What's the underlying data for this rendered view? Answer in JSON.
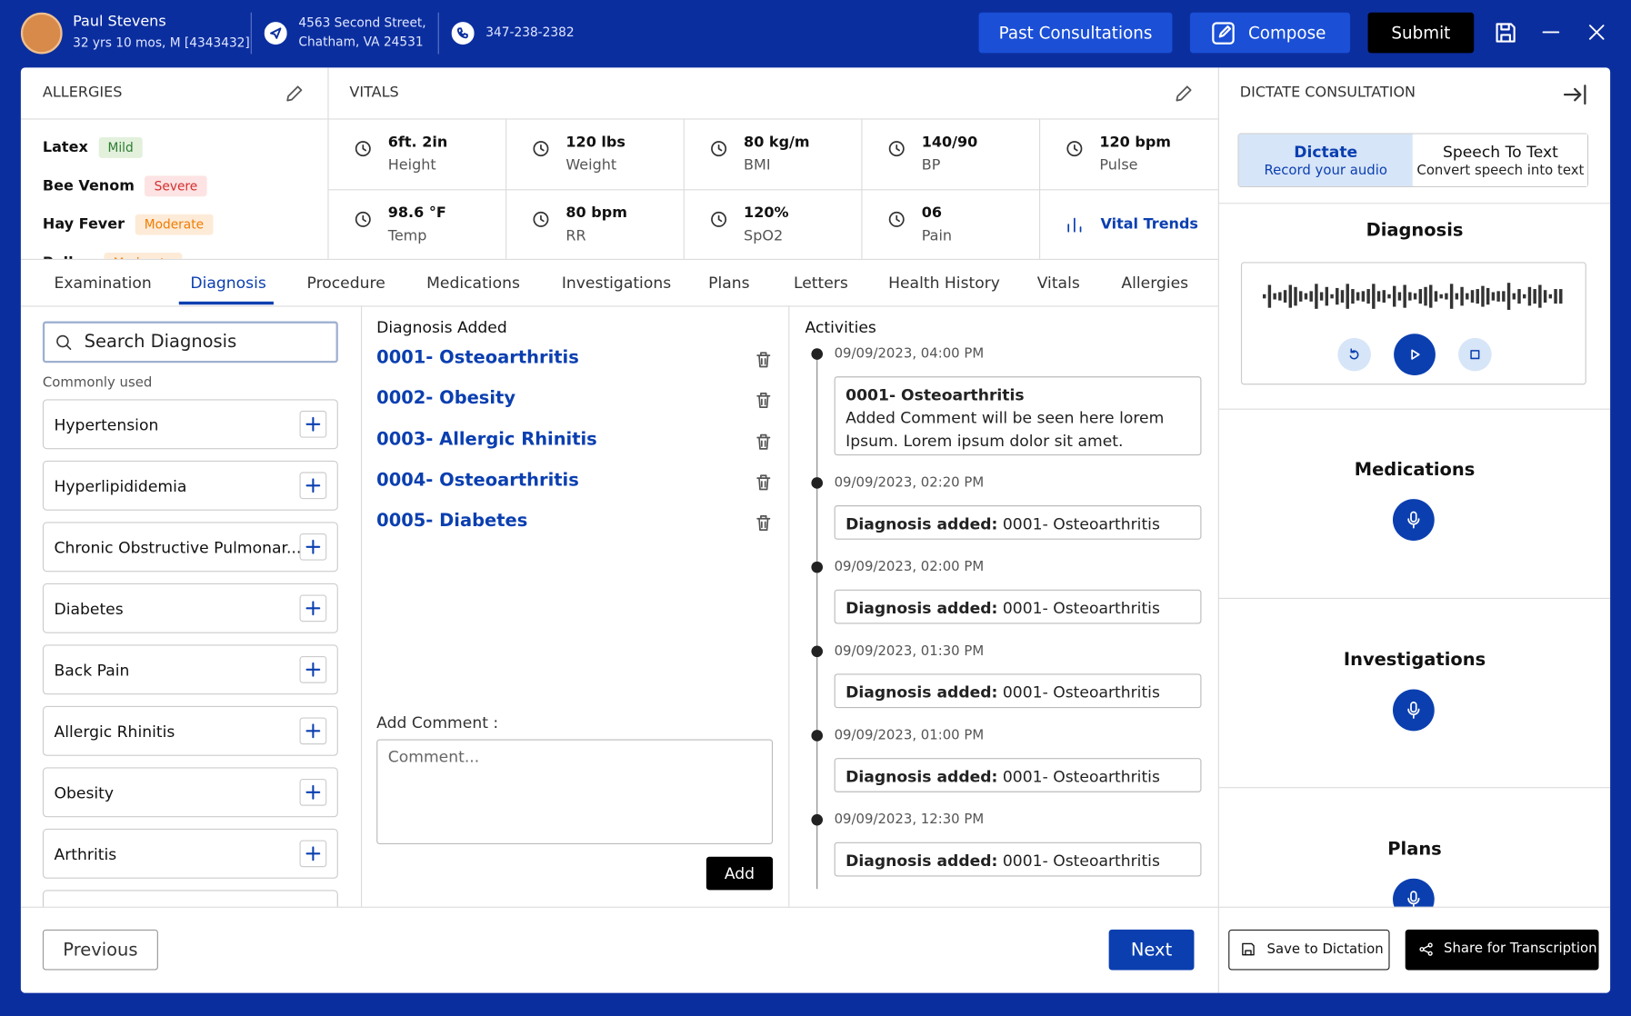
{
  "header": {
    "name": "Paul Stevens",
    "details": "32 yrs 10 mos, M [4343432]",
    "address_line1": "4563 Second Street,",
    "address_line2": "Chatham, VA 24531",
    "phone": "347-238-2382",
    "buttons": [
      "Past Consultations",
      "Compose",
      "Submit"
    ]
  },
  "allergies": {
    "title": "ALLERGIES",
    "items": [
      {
        "name": "Latex",
        "severity": "Mild"
      },
      {
        "name": "Bee Venom",
        "severity": "Severe"
      },
      {
        "name": "Hay Fever",
        "severity": "Moderate"
      },
      {
        "name": "Pollen",
        "severity": "Moderate"
      }
    ]
  },
  "vitals": {
    "title": "VITALS",
    "items": [
      {
        "value": "6ft. 2in",
        "label": "Height"
      },
      {
        "value": "120 lbs",
        "label": "Weight"
      },
      {
        "value": "80 kg/m",
        "label": "BMI"
      },
      {
        "value": "140/90",
        "label": "BP"
      },
      {
        "value": "120 bpm",
        "label": "Pulse"
      },
      {
        "value": "98.6 °F",
        "label": "Temp"
      },
      {
        "value": "80 bpm",
        "label": "RR"
      },
      {
        "value": "120%",
        "label": "SpO2"
      },
      {
        "value": "06",
        "label": "Pain"
      }
    ],
    "trends": "Vital Trends"
  },
  "tabs": [
    "Examination",
    "Diagnosis",
    "Procedure",
    "Medications",
    "Investigations",
    "Plans",
    "Letters",
    "Health History",
    "Vitals",
    "Allergies"
  ],
  "search": {
    "placeholder": "Search Diagnosis",
    "commonly_used": "Commonly used",
    "items": [
      "Hypertension",
      "Hyperlipididemia",
      "Chronic Obstructive Pulmonar...",
      "Diabetes",
      "Back Pain",
      "Allergic Rhinitis",
      "Obesity",
      "Arthritis"
    ]
  },
  "diagnosis_added": {
    "title": "Diagnosis Added",
    "items": [
      "0001- Osteoarthritis",
      "0002- Obesity",
      "0003- Allergic Rhinitis",
      "0004- Osteoarthritis",
      "0005- Diabetes"
    ]
  },
  "comment": {
    "label": "Add Comment :",
    "placeholder": "Comment...",
    "button": "Add"
  },
  "activities": {
    "title": "Activities",
    "items": [
      {
        "time": "09/09/2023, 04:00 PM",
        "label": "0001- Osteoarthritis",
        "text": "Added Comment will be seen here lorem Ipsum. Lorem ipsum dolor sit amet."
      },
      {
        "time": "09/09/2023, 02:20 PM",
        "label": "Diagnosis added:",
        "text": "0001- Osteoarthritis"
      },
      {
        "time": "09/09/2023, 02:00 PM",
        "label": "Diagnosis added:",
        "text": "0001- Osteoarthritis"
      },
      {
        "time": "09/09/2023, 01:30 PM",
        "label": "Diagnosis added:",
        "text": "0001- Osteoarthritis"
      },
      {
        "time": "09/09/2023, 01:00 PM",
        "label": "Diagnosis added:",
        "text": "0001- Osteoarthritis"
      },
      {
        "time": "09/09/2023, 12:30 PM",
        "label": "Diagnosis added:",
        "text": "0001- Osteoarthritis"
      }
    ]
  },
  "dictate": {
    "title": "DICTATE CONSULTATION",
    "modes": [
      {
        "title": "Dictate",
        "subtitle": "Record your audio"
      },
      {
        "title": "Speech To Text",
        "subtitle": "Convert speech into text"
      }
    ],
    "sections": [
      "Diagnosis",
      "Medications",
      "Investigations",
      "Plans"
    ]
  },
  "footer": {
    "previous": "Previous",
    "next": "Next",
    "save": "Save to Dictation",
    "share": "Share for Transcription"
  }
}
